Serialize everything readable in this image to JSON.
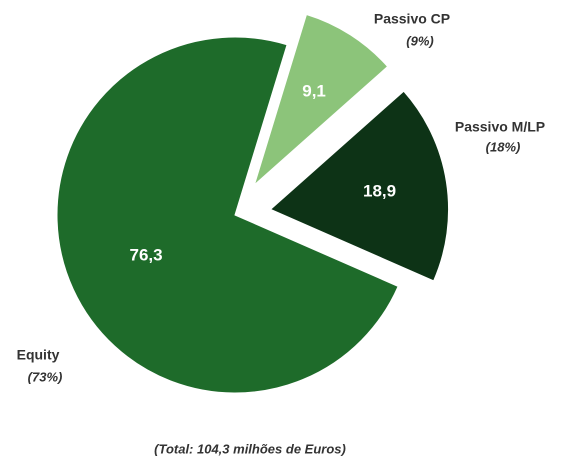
{
  "chart_data": {
    "type": "pie",
    "categories": [
      "Passivo CP",
      "Passivo M/LP",
      "Equity"
    ],
    "values": [
      9.1,
      18.9,
      76.3
    ],
    "value_labels": [
      "9,1",
      "18,9",
      "76,3"
    ],
    "percent_labels": [
      "(9%)",
      "(18%)",
      "(73%)"
    ],
    "colors": [
      "#8cc47a",
      "#0d3316",
      "#1e6b2a"
    ],
    "exploded": [
      true,
      true,
      false
    ],
    "note": "(Total: 104,3 milhões de Euros)"
  }
}
